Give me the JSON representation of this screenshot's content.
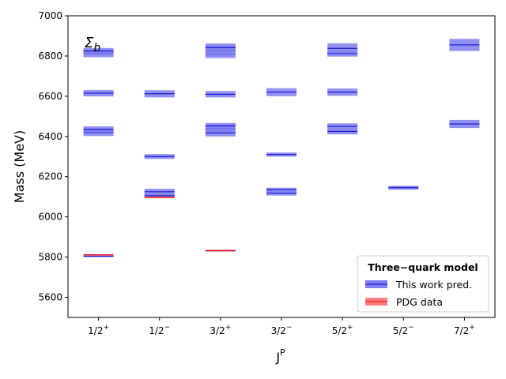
{
  "chart_data": {
    "type": "level-spectrum",
    "panel_label": "Σ",
    "panel_label_sub": "b",
    "ylabel": "Mass (MeV)",
    "xlabel": "J",
    "xlabel_sup": "P",
    "ylim": [
      5500,
      7000
    ],
    "yticks": [
      5600,
      5800,
      6000,
      6200,
      6400,
      6600,
      6800,
      7000
    ],
    "categories": [
      {
        "label": "1/2",
        "parity": "+"
      },
      {
        "label": "1/2",
        "parity": "−"
      },
      {
        "label": "3/2",
        "parity": "+"
      },
      {
        "label": "3/2",
        "parity": "−"
      },
      {
        "label": "5/2",
        "parity": "+"
      },
      {
        "label": "5/2",
        "parity": "−"
      },
      {
        "label": "7/2",
        "parity": "+"
      }
    ],
    "legend": {
      "title": "Three−quark model",
      "position": "lower-right",
      "entries": [
        "This work pred.",
        "PDG data"
      ]
    },
    "colors": {
      "pred_fill": "#7f7ff0",
      "pred_line": "#0000cc",
      "pdg_fill": "#ff8080",
      "pdg_line": "#e00000"
    },
    "series": [
      {
        "name": "This work pred.",
        "levels": [
          {
            "cat": 0,
            "mass": 5805,
            "unc": 5
          },
          {
            "cat": 0,
            "mass": 6420,
            "unc": 18
          },
          {
            "cat": 0,
            "mass": 6435,
            "unc": 15
          },
          {
            "cat": 0,
            "mass": 6615,
            "unc": 16
          },
          {
            "cat": 0,
            "mass": 6812,
            "unc": 18
          },
          {
            "cat": 0,
            "mass": 6825,
            "unc": 15
          },
          {
            "cat": 1,
            "mass": 6105,
            "unc": 10
          },
          {
            "cat": 1,
            "mass": 6125,
            "unc": 15
          },
          {
            "cat": 1,
            "mass": 6300,
            "unc": 12
          },
          {
            "cat": 1,
            "mass": 6612,
            "unc": 18
          },
          {
            "cat": 2,
            "mass": 5832,
            "unc": 5
          },
          {
            "cat": 2,
            "mass": 6418,
            "unc": 18
          },
          {
            "cat": 2,
            "mass": 6440,
            "unc": 20
          },
          {
            "cat": 2,
            "mass": 6452,
            "unc": 15
          },
          {
            "cat": 2,
            "mass": 6610,
            "unc": 16
          },
          {
            "cat": 2,
            "mass": 6808,
            "unc": 18
          },
          {
            "cat": 2,
            "mass": 6828,
            "unc": 25
          },
          {
            "cat": 2,
            "mass": 6842,
            "unc": 20
          },
          {
            "cat": 3,
            "mass": 6118,
            "unc": 12
          },
          {
            "cat": 3,
            "mass": 6135,
            "unc": 10
          },
          {
            "cat": 3,
            "mass": 6310,
            "unc": 10
          },
          {
            "cat": 3,
            "mass": 6620,
            "unc": 20
          },
          {
            "cat": 4,
            "mass": 6425,
            "unc": 15
          },
          {
            "cat": 4,
            "mass": 6450,
            "unc": 15
          },
          {
            "cat": 4,
            "mass": 6620,
            "unc": 18
          },
          {
            "cat": 4,
            "mass": 6812,
            "unc": 15
          },
          {
            "cat": 4,
            "mass": 6838,
            "unc": 25
          },
          {
            "cat": 5,
            "mass": 6145,
            "unc": 10
          },
          {
            "cat": 6,
            "mass": 6462,
            "unc": 20
          },
          {
            "cat": 6,
            "mass": 6855,
            "unc": 30
          }
        ]
      },
      {
        "name": "PDG data",
        "levels": [
          {
            "cat": 0,
            "mass": 5811,
            "unc": 4
          },
          {
            "cat": 1,
            "mass": 6097,
            "unc": 4
          },
          {
            "cat": 2,
            "mass": 5832,
            "unc": 4
          }
        ]
      }
    ]
  }
}
